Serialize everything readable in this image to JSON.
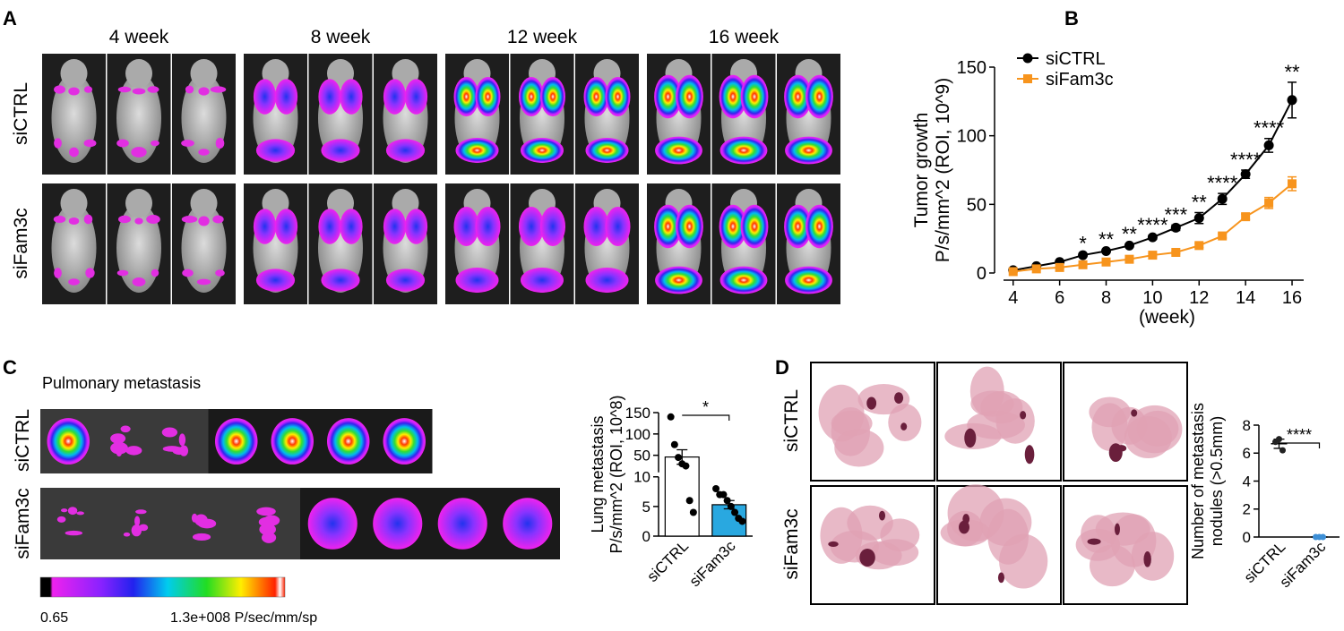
{
  "panels": {
    "A": {
      "label": "A",
      "columns": [
        "4 week",
        "8 week",
        "12 week",
        "16 week"
      ],
      "rows": [
        "siCTRL",
        "siFam3c"
      ]
    },
    "B": {
      "label": "B"
    },
    "C": {
      "label": "C",
      "title": "Pulmonary metastasis",
      "rows": [
        "siCTRL",
        "siFam3c"
      ],
      "colorbar": [
        "0.65",
        "1.3e+008 P/sec/mm/sp"
      ]
    },
    "D": {
      "label": "D",
      "rows": [
        "siCTRL",
        "siFam3c"
      ]
    }
  },
  "chart_data": [
    {
      "type": "line",
      "ylabel": [
        "Tumor growth",
        "P/s/mm^2 (ROI, 10^9)"
      ],
      "xlabel": "(week)",
      "x": [
        4,
        5,
        6,
        7,
        8,
        9,
        10,
        11,
        12,
        13,
        14,
        15,
        16
      ],
      "series": [
        {
          "name": "siCTRL",
          "color": "#000000",
          "marker": "circle",
          "values": [
            2,
            5,
            8,
            13,
            16,
            20,
            26,
            33,
            40,
            54,
            72,
            93,
            126
          ],
          "errors": [
            0.5,
            0.5,
            0.5,
            1,
            1,
            1,
            1.5,
            2,
            4,
            4,
            3,
            5,
            13
          ]
        },
        {
          "name": "siFam3c",
          "color": "#f7941d",
          "marker": "square",
          "values": [
            1,
            3,
            4,
            6,
            8,
            10,
            13,
            15,
            20,
            27,
            41,
            51,
            65
          ],
          "errors": [
            0.3,
            0.3,
            0.5,
            0.5,
            0.5,
            0.5,
            1,
            1,
            1.5,
            1.5,
            2,
            4,
            5
          ]
        }
      ],
      "annotations": [
        null,
        null,
        null,
        "*",
        "**",
        "**",
        "****",
        "***",
        "**",
        "****",
        "****",
        "****",
        "**"
      ],
      "xlim": [
        3.2,
        16.5
      ],
      "xticks": [
        4,
        6,
        8,
        10,
        12,
        14,
        16
      ],
      "ylim": [
        0,
        150
      ],
      "yticks": [
        0,
        50,
        100,
        150
      ],
      "legend": "upper left"
    },
    {
      "type": "bar",
      "ylabel": [
        "Lung metastasis",
        "P/s/mm^2 (ROI, 10^8)"
      ],
      "categories": [
        "siCTRL",
        "siFam3c"
      ],
      "values": [
        46,
        5.3
      ],
      "errors": [
        17,
        0.7
      ],
      "points": [
        [
          140,
          75,
          45,
          30,
          25,
          6,
          4
        ],
        [
          8,
          7,
          7,
          6,
          5,
          4,
          3,
          2.5
        ]
      ],
      "colors": [
        "#ffffff",
        "#29a8e0"
      ],
      "significance": "*",
      "ylim": [
        0,
        150
      ],
      "ybreak": 10,
      "yticks": [
        0,
        5,
        10,
        50,
        100,
        150
      ]
    },
    {
      "type": "dot",
      "ylabel": [
        "Number of metastasis",
        "nodules (>0.5mm)"
      ],
      "categories": [
        "siCTRL",
        "siFam3c"
      ],
      "values": [
        6.67,
        0
      ],
      "errors": [
        0.33,
        0
      ],
      "points": [
        [
          7,
          6.8,
          6.2
        ],
        [
          0,
          0,
          0
        ]
      ],
      "colors": [
        "#222222",
        "#3d8fd6"
      ],
      "significance": "****",
      "ylim": [
        0,
        8
      ],
      "yticks": [
        0,
        2,
        4,
        6,
        8
      ]
    }
  ]
}
